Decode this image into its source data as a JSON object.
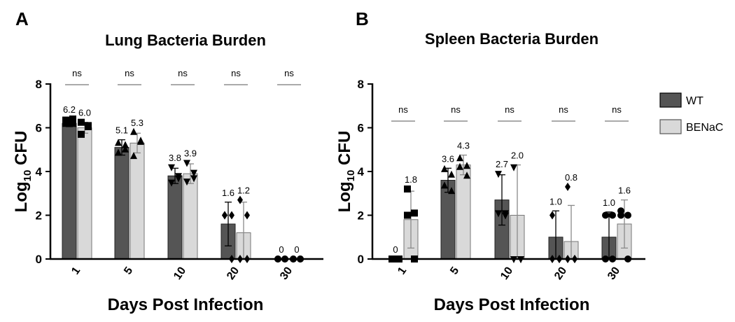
{
  "chart_data": [
    {
      "type": "bar",
      "panel_label": "A",
      "title": "Lung Bacteria Burden",
      "xlabel": "Days Post Infection",
      "ylabel": "Log",
      "ylabel_sub": "10",
      "ylabel_rest": " CFU",
      "ylim": [
        0,
        8
      ],
      "yticks": [
        "0",
        "2",
        "4",
        "6",
        "8"
      ],
      "categories": [
        "1",
        "5",
        "10",
        "20",
        "30"
      ],
      "significance": [
        "ns",
        "ns",
        "ns",
        "ns",
        "ns"
      ],
      "series": [
        {
          "name": "WT",
          "values": [
            6.2,
            5.1,
            3.8,
            1.6,
            0
          ],
          "labels": [
            "6.2",
            "5.1",
            "3.8",
            "1.6",
            "0"
          ],
          "err": [
            0.15,
            0.35,
            0.35,
            1.0,
            0
          ],
          "markers": [
            "square",
            "triangle-up",
            "triangle-down",
            "diamond",
            "circle"
          ],
          "points": [
            [
              6.2,
              6.4,
              6.35,
              6.2
            ],
            [
              5.3,
              5.0,
              4.85,
              5.2
            ],
            [
              4.2,
              3.8,
              3.5,
              3.7
            ],
            [
              2.0,
              2.0,
              2.0,
              0
            ],
            [
              0,
              0,
              0,
              0
            ]
          ]
        },
        {
          "name": "BENaC",
          "values": [
            6.0,
            5.3,
            3.9,
            1.2,
            0
          ],
          "labels": [
            "6.0",
            "5.3",
            "3.9",
            "1.2",
            "0"
          ],
          "err": [
            0.25,
            0.45,
            0.45,
            1.4,
            0
          ],
          "markers": [
            "square",
            "triangle-up",
            "triangle-down",
            "diamond",
            "circle"
          ],
          "points": [
            [
              6.25,
              6.05,
              5.7,
              6.1
            ],
            [
              5.8,
              5.35,
              4.7,
              5.4
            ],
            [
              4.4,
              3.95,
              3.55,
              3.7
            ],
            [
              2.7,
              2.0,
              0,
              0
            ],
            [
              0,
              0,
              0,
              0
            ]
          ]
        }
      ],
      "show_legend": false
    },
    {
      "type": "bar",
      "panel_label": "B",
      "title": "Spleen Bacteria Burden",
      "xlabel": "Days Post Infection",
      "ylabel": "Log",
      "ylabel_sub": "10",
      "ylabel_rest": " CFU",
      "ylim": [
        0,
        8
      ],
      "yticks": [
        "0",
        "2",
        "4",
        "6",
        "8"
      ],
      "categories": [
        "1",
        "5",
        "10",
        "20",
        "30"
      ],
      "significance": [
        "ns",
        "ns",
        "ns",
        "ns",
        "ns"
      ],
      "series": [
        {
          "name": "WT",
          "values": [
            0,
            3.6,
            2.7,
            1.0,
            1.0
          ],
          "labels": [
            "0",
            "3.6",
            "2.7",
            "1.0",
            "1.0"
          ],
          "err": [
            0,
            0.55,
            1.15,
            1.2,
            1.15
          ],
          "markers": [
            "square",
            "triangle-up",
            "triangle-down",
            "diamond",
            "circle"
          ],
          "points": [
            [
              0,
              0,
              0,
              0
            ],
            [
              4.1,
              3.85,
              3.35,
              3.1
            ],
            [
              3.9,
              2.1,
              2.1,
              2.0
            ],
            [
              2.0,
              0,
              0,
              0
            ],
            [
              2.0,
              0,
              0,
              2.0
            ]
          ]
        },
        {
          "name": "BENaC",
          "values": [
            1.8,
            4.3,
            2.0,
            0.8,
            1.6
          ],
          "labels": [
            "1.8",
            "4.3",
            "2.0",
            "0.8",
            "1.6"
          ],
          "err": [
            1.3,
            0.45,
            2.3,
            1.65,
            1.1
          ],
          "markers": [
            "square",
            "triangle-up",
            "triangle-down",
            "diamond",
            "circle"
          ],
          "points": [
            [
              3.2,
              2.1,
              2.0,
              0
            ],
            [
              4.6,
              4.25,
              4.2,
              3.8
            ],
            [
              4.2,
              0,
              0,
              0
            ],
            [
              3.3,
              0,
              0,
              0
            ],
            [
              2.2,
              2.0,
              2.0,
              0
            ]
          ]
        }
      ],
      "show_legend": true
    }
  ],
  "legend": {
    "items": [
      {
        "name": "WT",
        "color": "#555555"
      },
      {
        "name": "BENaC",
        "color": "#d9d9d9"
      }
    ]
  },
  "colors": {
    "wt_bar": "#555555",
    "benac_bar": "#d9d9d9",
    "wt_err": "#000000",
    "benac_err": "#8a8a8a",
    "axis": "#000000",
    "sig_line": "#777777"
  }
}
